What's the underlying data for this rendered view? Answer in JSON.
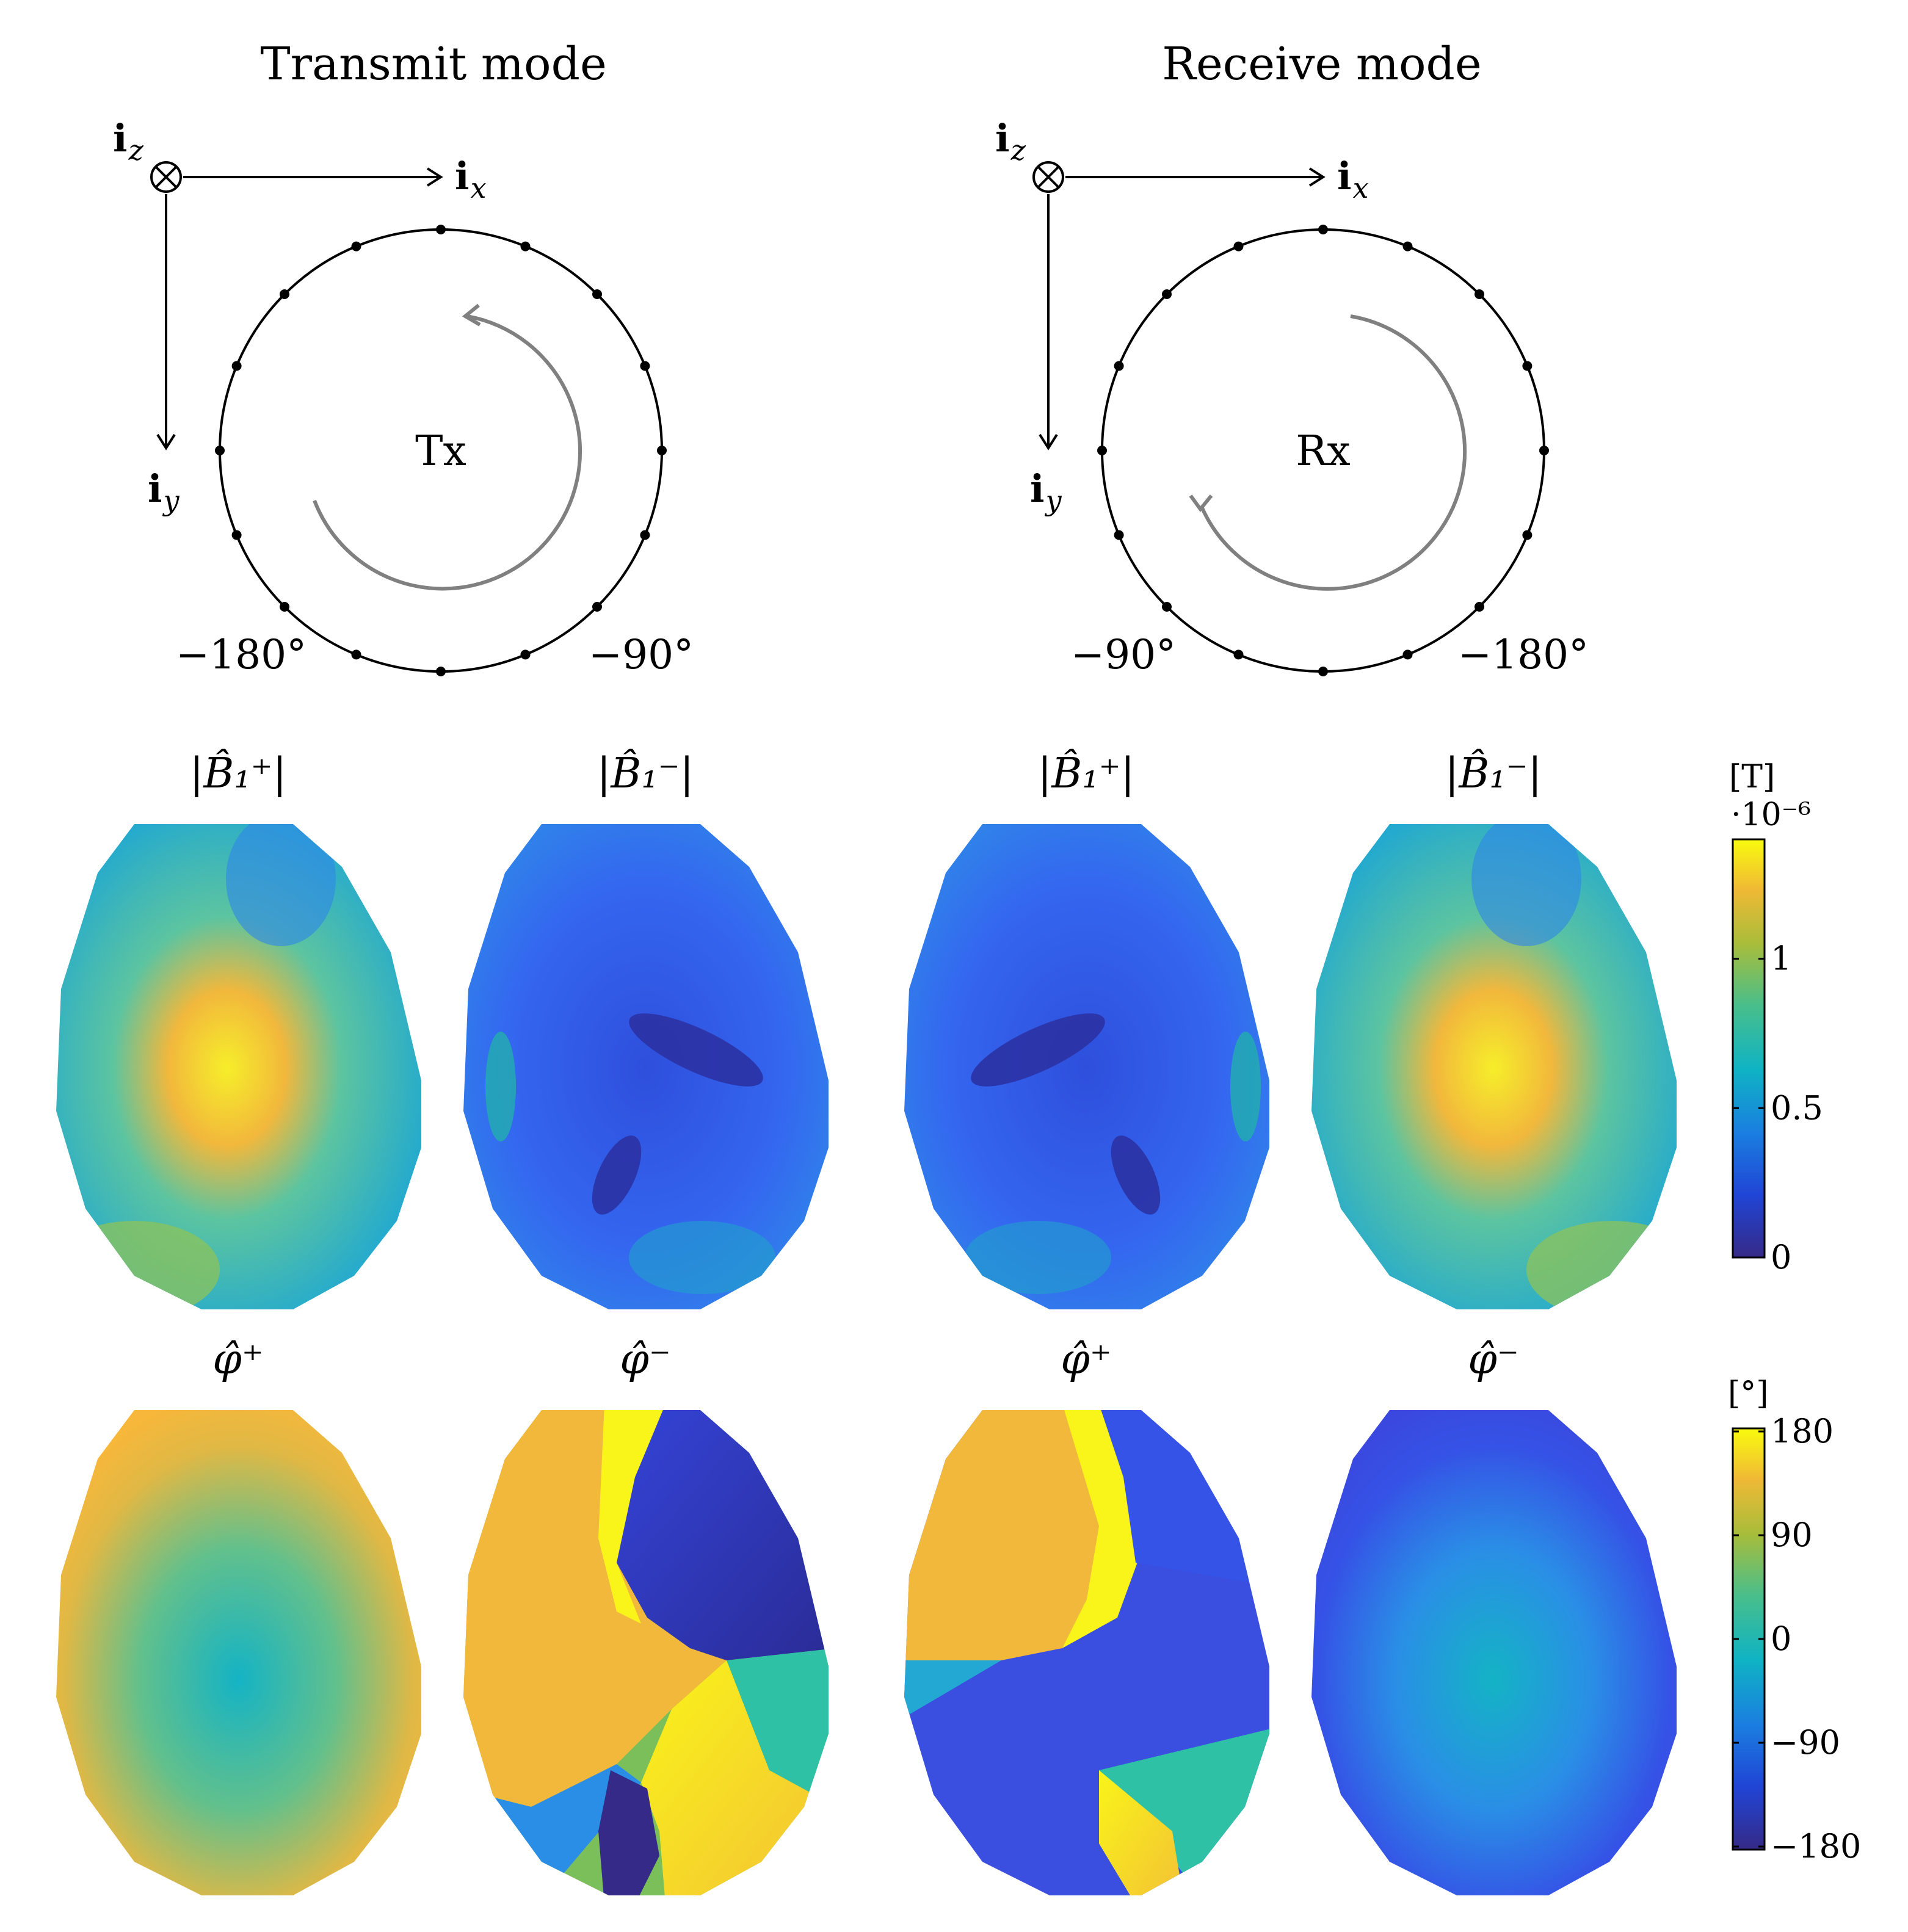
{
  "transmit": {
    "title": "Transmit mode",
    "axis_x": "i",
    "axis_x_sub": "x",
    "axis_y": "i",
    "axis_y_sub": "y",
    "axis_z": "i",
    "axis_z_sub": "z",
    "center_label": "Tx",
    "angle_left": "−180°",
    "angle_right": "−90°"
  },
  "receive": {
    "title": "Receive mode",
    "axis_x": "i",
    "axis_x_sub": "x",
    "axis_y": "i",
    "axis_y_sub": "y",
    "axis_z": "i",
    "axis_z_sub": "z",
    "center_label": "Rx",
    "angle_left": "−90°",
    "angle_right": "−180°"
  },
  "maps": {
    "row1_titles": [
      "|B̂₁⁺|",
      "|B̂₁⁻|",
      "|B̂₁⁺|",
      "|B̂₁⁻|"
    ],
    "row2_titles": [
      "φ̂⁺",
      "φ̂⁻",
      "φ̂⁺",
      "φ̂⁻"
    ]
  },
  "colorbar_magnitude": {
    "unit": "[T]",
    "multiplier": "·10⁻⁶",
    "ticks": [
      "1",
      "0.5",
      "0"
    ],
    "tick_values": [
      1,
      0.5,
      0
    ],
    "range": [
      0,
      1.4
    ]
  },
  "colorbar_phase": {
    "unit": "[°]",
    "ticks": [
      "180",
      "90",
      "0",
      "−90",
      "−180"
    ],
    "tick_values": [
      180,
      90,
      0,
      -90,
      -180
    ],
    "range": [
      -180,
      180
    ]
  },
  "colors": {
    "parula_low": "#352a87",
    "parula_blue": "#2a6cf0",
    "parula_teal": "#0fb3c4",
    "parula_green": "#7cbf5a",
    "parula_orange": "#f9b839",
    "parula_high": "#f9fb0e",
    "arrow_gray": "#808080"
  }
}
